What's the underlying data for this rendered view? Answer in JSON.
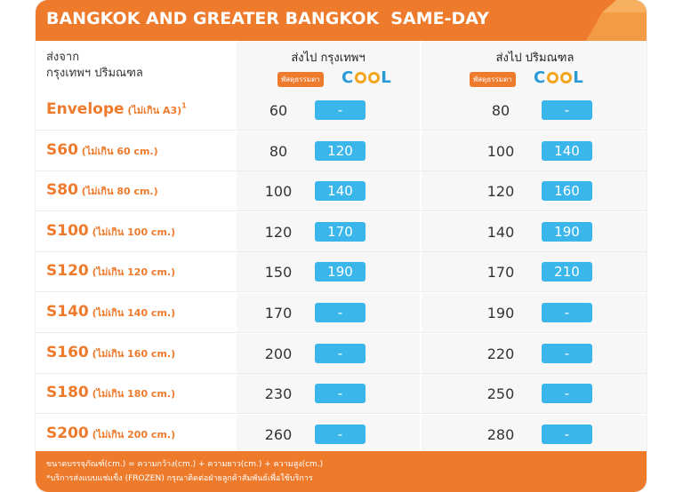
{
  "header": {
    "title": "BANGKOK AND GREATER BANGKOK  SAME-DAY",
    "color": "#ee7a2c"
  },
  "columns": {
    "from_label_line1": "ส่งจาก",
    "from_label_line2": "กรุงเทพฯ ปริมณฑล",
    "dest_bangkok": "ส่งไป กรุงเทพฯ",
    "dest_perimeter": "ส่งไป ปริมณฑล",
    "badge_normal": "พัสดุธรรมดา",
    "cool_label_c": "C",
    "cool_label_l": "L"
  },
  "rows": [
    {
      "size": "Envelope",
      "sub": " (ไม่เกิน A3)",
      "sup": "1",
      "bkk_normal": "60",
      "bkk_cool": "-",
      "per_normal": "80",
      "per_cool": "-"
    },
    {
      "size": "S60",
      "sub": " (ไม่เกิน 60 cm.)",
      "sup": "",
      "bkk_normal": "80",
      "bkk_cool": "120",
      "per_normal": "100",
      "per_cool": "140"
    },
    {
      "size": "S80",
      "sub": " (ไม่เกิน 80 cm.)",
      "sup": "",
      "bkk_normal": "100",
      "bkk_cool": "140",
      "per_normal": "120",
      "per_cool": "160"
    },
    {
      "size": "S100",
      "sub": " (ไม่เกิน 100 cm.)",
      "sup": "",
      "bkk_normal": "120",
      "bkk_cool": "170",
      "per_normal": "140",
      "per_cool": "190"
    },
    {
      "size": "S120",
      "sub": " (ไม่เกิน 120 cm.)",
      "sup": "",
      "bkk_normal": "150",
      "bkk_cool": "190",
      "per_normal": "170",
      "per_cool": "210"
    },
    {
      "size": "S140",
      "sub": " (ไม่เกิน 140 cm.)",
      "sup": "",
      "bkk_normal": "170",
      "bkk_cool": "-",
      "per_normal": "190",
      "per_cool": "-"
    },
    {
      "size": "S160",
      "sub": " (ไม่เกิน 160 cm.)",
      "sup": "",
      "bkk_normal": "200",
      "bkk_cool": "-",
      "per_normal": "220",
      "per_cool": "-"
    },
    {
      "size": "S180",
      "sub": " (ไม่เกิน 180 cm.)",
      "sup": "",
      "bkk_normal": "230",
      "bkk_cool": "-",
      "per_normal": "250",
      "per_cool": "-"
    },
    {
      "size": "S200",
      "sub": " (ไม่เกิน 200 cm.)",
      "sup": "",
      "bkk_normal": "260",
      "bkk_cool": "-",
      "per_normal": "280",
      "per_cool": "-"
    }
  ],
  "footer": {
    "line1": "ขนาดบรรจุภัณฑ์(cm.) = ความกว้าง(cm.) + ความยาว(cm.) + ความสูง(cm.)",
    "line2": "*บริการส่งแบบแช่แข็ง (FROZEN) กรุณาติดต่อฝ่ายลูกค้าสัมพันธ์เพื่อใช้บริการ"
  },
  "colors": {
    "orange": "#ee7a2c",
    "cool_blue": "#3bb6ea",
    "cool_ring": "#f2a41b"
  }
}
